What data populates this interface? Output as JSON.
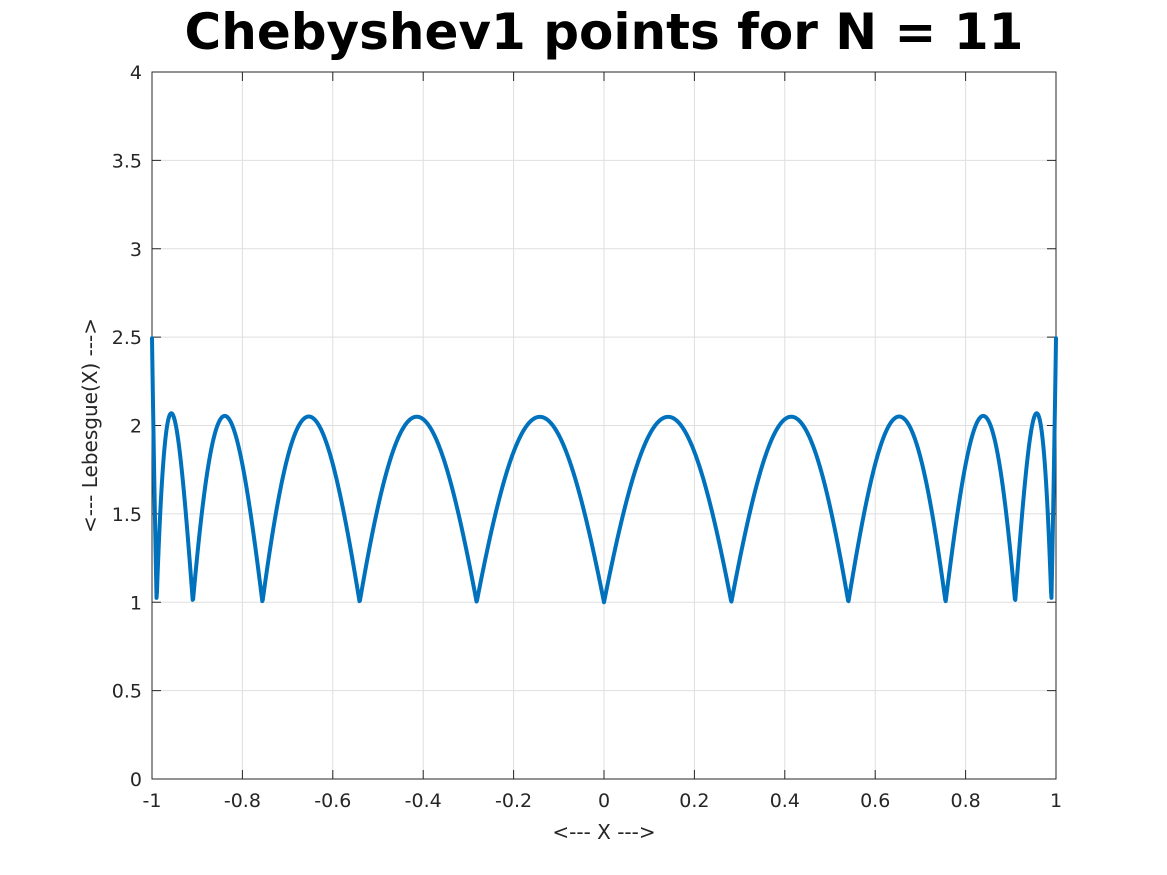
{
  "chart_data": {
    "type": "line",
    "title": "Chebyshev1 points for N = 11",
    "xlabel": "<--- X --->",
    "ylabel": "<--- Lebesgue(X) --->",
    "xlim": [
      -1,
      1
    ],
    "ylim": [
      0,
      4
    ],
    "xticks": [
      -1,
      -0.8,
      -0.6,
      -0.4,
      -0.2,
      0,
      0.2,
      0.4,
      0.6,
      0.8,
      1
    ],
    "xtick_labels": [
      "-1",
      "-0.8",
      "-0.6",
      "-0.4",
      "-0.2",
      "0",
      "0.2",
      "0.4",
      "0.6",
      "0.8",
      "1"
    ],
    "yticks": [
      0,
      0.5,
      1,
      1.5,
      2,
      2.5,
      3,
      3.5,
      4
    ],
    "ytick_labels": [
      "0",
      "0.5",
      "1",
      "1.5",
      "2",
      "2.5",
      "3",
      "3.5",
      "4"
    ],
    "grid": true,
    "line_color": "#0072BD",
    "series": [
      {
        "x": [
          -1.0,
          -0.9898,
          -0.9096,
          -0.7557,
          -0.5406,
          -0.2817,
          0.0,
          0.2817,
          0.5406,
          0.7557,
          0.9096,
          0.9898,
          1.0
        ],
        "y": [
          2.48,
          1.0,
          1.0,
          1.0,
          1.0,
          1.0,
          1.0,
          1.0,
          1.0,
          1.0,
          1.0,
          1.0,
          2.48
        ]
      }
    ]
  }
}
